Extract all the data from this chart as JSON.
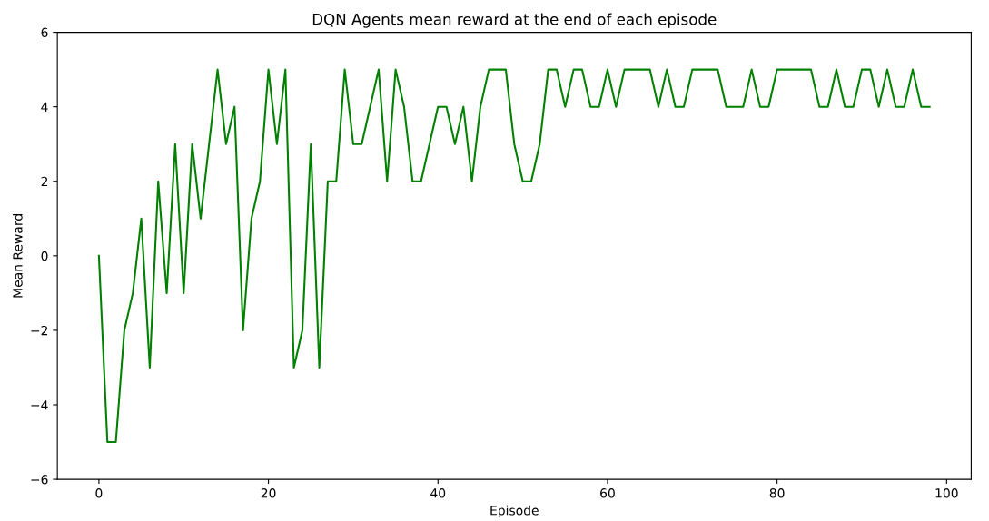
{
  "chart_data": {
    "type": "line",
    "title": "DQN Agents mean reward at the end of each episode",
    "xlabel": "Episode",
    "ylabel": "Mean Reward",
    "x": [
      0,
      1,
      2,
      3,
      4,
      5,
      6,
      7,
      8,
      9,
      10,
      11,
      12,
      13,
      14,
      15,
      16,
      17,
      18,
      19,
      20,
      21,
      22,
      23,
      24,
      25,
      26,
      27,
      28,
      29,
      30,
      31,
      32,
      33,
      34,
      35,
      36,
      37,
      38,
      39,
      40,
      41,
      42,
      43,
      44,
      45,
      46,
      47,
      48,
      49,
      50,
      51,
      52,
      53,
      54,
      55,
      56,
      57,
      58,
      59,
      60,
      61,
      62,
      63,
      64,
      65,
      66,
      67,
      68,
      69,
      70,
      71,
      72,
      73,
      74,
      75,
      76,
      77,
      78,
      79,
      80,
      81,
      82,
      83,
      84,
      85,
      86,
      87,
      88,
      89,
      90,
      91,
      92,
      93,
      94,
      95,
      96,
      97,
      98
    ],
    "series": [
      {
        "color": "#008000",
        "values": [
          0,
          -5,
          -5,
          -2,
          -1,
          1,
          -3,
          2,
          -1,
          3,
          -1,
          3,
          1,
          3,
          5,
          3,
          4,
          -2,
          1,
          2,
          5,
          3,
          5,
          -3,
          -2,
          3,
          -3,
          2,
          2,
          5,
          3,
          3,
          4,
          5,
          2,
          5,
          4,
          2,
          2,
          3,
          4,
          4,
          3,
          4,
          2,
          4,
          5,
          5,
          5,
          3,
          2,
          2,
          3,
          5,
          5,
          4,
          5,
          5,
          4,
          4,
          5,
          4,
          5,
          5,
          5,
          5,
          4,
          5,
          4,
          4,
          5,
          5,
          5,
          5,
          4,
          4,
          4,
          5,
          4,
          4,
          5,
          5,
          5,
          5,
          5,
          4,
          4,
          5,
          4,
          4,
          5,
          5,
          4,
          5,
          4,
          4,
          5,
          4,
          4
        ]
      }
    ],
    "xlim": [
      -4.9,
      102.9
    ],
    "xticks": [
      0,
      20,
      40,
      60,
      80,
      100
    ],
    "ylim": [
      -6,
      6
    ],
    "yticks": [
      {
        "value": -6,
        "label": "−6"
      },
      {
        "value": -4,
        "label": "−4"
      },
      {
        "value": -2,
        "label": "−2"
      },
      0,
      2,
      4,
      6
    ],
    "grid": false
  }
}
